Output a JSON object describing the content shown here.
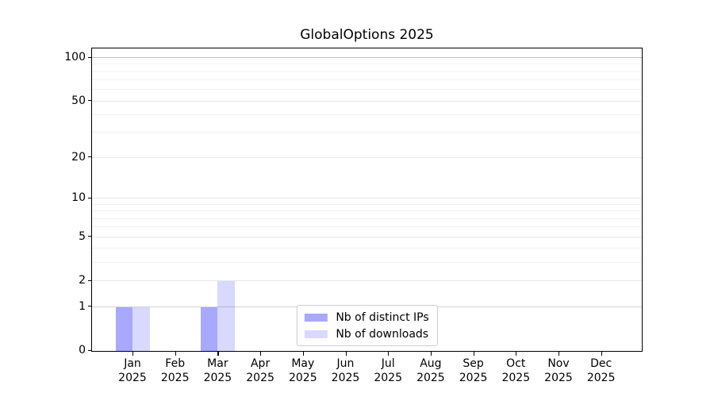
{
  "chart_data": {
    "type": "bar",
    "title": "GlobalOptions 2025",
    "x_year": "2025",
    "categories": [
      "Jan",
      "Feb",
      "Mar",
      "Apr",
      "May",
      "Jun",
      "Jul",
      "Aug",
      "Sep",
      "Oct",
      "Nov",
      "Dec"
    ],
    "series": [
      {
        "name": "Nb of distinct IPs",
        "color": "rgba(0,0,255,0.34)",
        "values": [
          1,
          0,
          1,
          0,
          0,
          0,
          0,
          0,
          0,
          0,
          0,
          0
        ]
      },
      {
        "name": "Nb of downloads",
        "color": "rgba(0,0,255,0.15)",
        "values": [
          1,
          0,
          2,
          0,
          0,
          0,
          0,
          0,
          0,
          0,
          0,
          0
        ]
      }
    ],
    "y_scale": "log1p",
    "ylim": [
      0,
      115
    ],
    "y_ticks": [
      0,
      1,
      2,
      5,
      10,
      20,
      50,
      100
    ],
    "y_minor_ticks": [
      3,
      4,
      6,
      7,
      8,
      9,
      30,
      40,
      60,
      70,
      80,
      90
    ],
    "grid": true,
    "legend_position": "lower center",
    "colors": {
      "grid_major": "#e7e7e7",
      "grid_minor": "#f1f1f1",
      "grid_emphasis": {
        "1": "#d2d2d2",
        "100": "#c3c3c3"
      },
      "axis": "#000000",
      "text": "#000000",
      "background": "#ffffff"
    }
  }
}
